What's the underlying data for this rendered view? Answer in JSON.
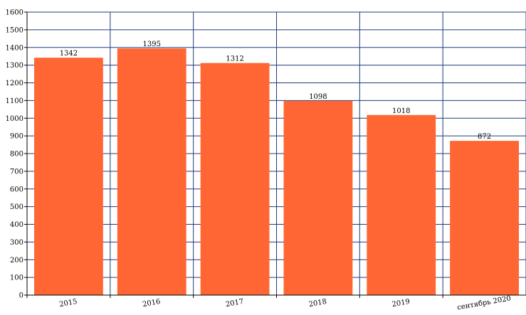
{
  "chart_data": {
    "type": "bar",
    "categories": [
      "2015",
      "2016",
      "2017",
      "2018",
      "2019",
      "сентябрь 2020"
    ],
    "values": [
      1342,
      1395,
      1312,
      1098,
      1018,
      872
    ],
    "data_labels": [
      "1342",
      "1395",
      "1312",
      "1098",
      "1018",
      "872"
    ],
    "ylim": [
      0,
      1600
    ],
    "yticks": [
      0,
      100,
      200,
      300,
      400,
      500,
      600,
      700,
      800,
      900,
      1000,
      1100,
      1200,
      1300,
      1400,
      1500,
      1600
    ],
    "grid": true,
    "legend": "none",
    "title": "",
    "xlabel": "",
    "ylabel": "",
    "colors": {
      "bar": "#ff6633",
      "grid": "#1f3c78",
      "axis": "#000000"
    }
  }
}
